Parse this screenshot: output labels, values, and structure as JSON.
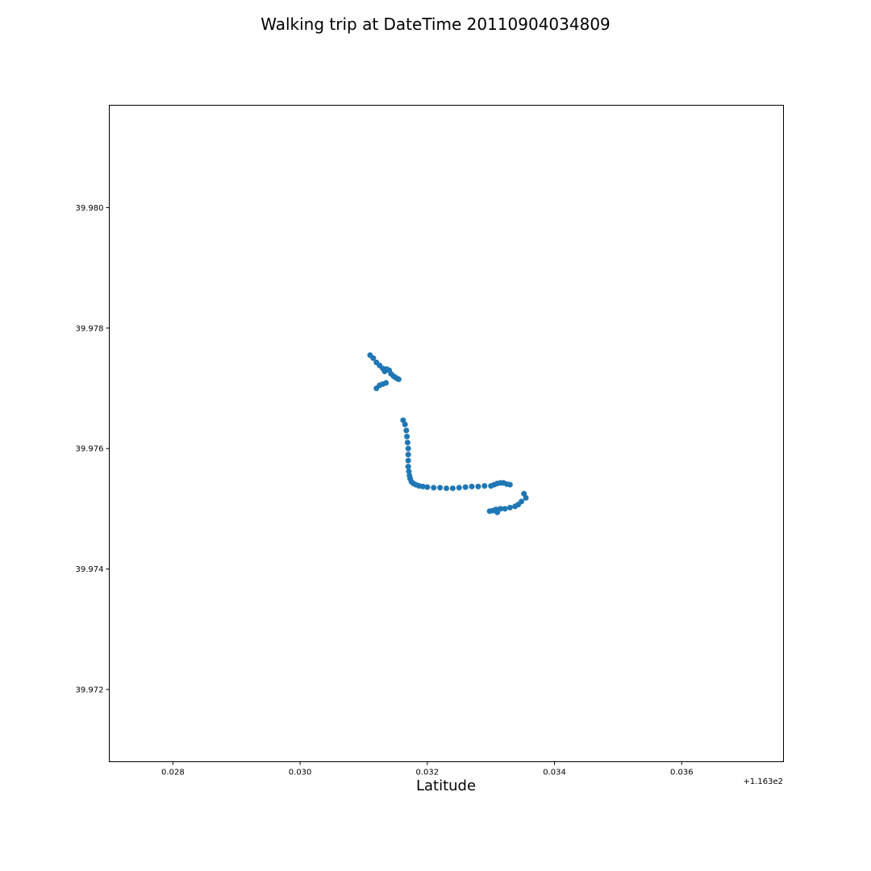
{
  "chart_data": {
    "type": "scatter",
    "title": "Walking trip at DateTime 20110904034809",
    "xlabel": "Latitude",
    "ylabel": "",
    "x_offset_label": "+1.163e2",
    "x_offset": 116.3,
    "xlim": [
      0.027,
      0.0376
    ],
    "ylim": [
      39.9708,
      39.9817
    ],
    "x_ticks": [
      0.028,
      0.03,
      0.032,
      0.034,
      0.036
    ],
    "x_tick_labels": [
      "0.028",
      "0.030",
      "0.032",
      "0.034",
      "0.036"
    ],
    "y_ticks": [
      39.972,
      39.974,
      39.976,
      39.978,
      39.98
    ],
    "y_tick_labels": [
      "39.972",
      "39.974",
      "39.976",
      "39.978",
      "39.980"
    ],
    "grid": false,
    "marker_color": "#1f77b4",
    "series": [
      {
        "x": [
          0.0311,
          0.03115,
          0.0312,
          0.03125,
          0.0313,
          0.03133,
          0.03136,
          0.0314,
          0.03143,
          0.03147,
          0.0315,
          0.03153,
          0.03155,
          0.0312,
          0.03125,
          0.0313,
          0.03135,
          0.03162,
          0.03165,
          0.03167,
          0.03168,
          0.03169,
          0.0317,
          0.0317,
          0.0317,
          0.0317,
          0.03171,
          0.03172,
          0.03173,
          0.03175,
          0.03178,
          0.03182,
          0.03187,
          0.03193,
          0.032,
          0.0321,
          0.0322,
          0.0323,
          0.0324,
          0.0325,
          0.0326,
          0.0327,
          0.0328,
          0.0329,
          0.033,
          0.03305,
          0.0331,
          0.03315,
          0.0332,
          0.03325,
          0.0333,
          0.03352,
          0.03355,
          0.03348,
          0.03343,
          0.03338,
          0.0333,
          0.03322,
          0.03315,
          0.03308,
          0.03303,
          0.03298,
          0.0331
        ],
        "y": [
          39.97755,
          39.9775,
          39.97743,
          39.97738,
          39.97733,
          39.97728,
          39.97732,
          39.9773,
          39.97724,
          39.9772,
          39.97718,
          39.97716,
          39.97715,
          39.977,
          39.97705,
          39.97707,
          39.97709,
          39.97647,
          39.9764,
          39.9763,
          39.9762,
          39.9761,
          39.976,
          39.9759,
          39.9758,
          39.9757,
          39.97562,
          39.97555,
          39.9755,
          39.97545,
          39.97542,
          39.9754,
          39.97538,
          39.97537,
          39.97536,
          39.97535,
          39.97535,
          39.97534,
          39.97534,
          39.97535,
          39.97536,
          39.97537,
          39.97537,
          39.97538,
          39.97538,
          39.9754,
          39.97542,
          39.97543,
          39.97543,
          39.97541,
          39.9754,
          39.97525,
          39.97518,
          39.97512,
          39.97507,
          39.97504,
          39.97502,
          39.975,
          39.975,
          39.97499,
          39.97497,
          39.97496,
          39.97494
        ]
      }
    ]
  }
}
